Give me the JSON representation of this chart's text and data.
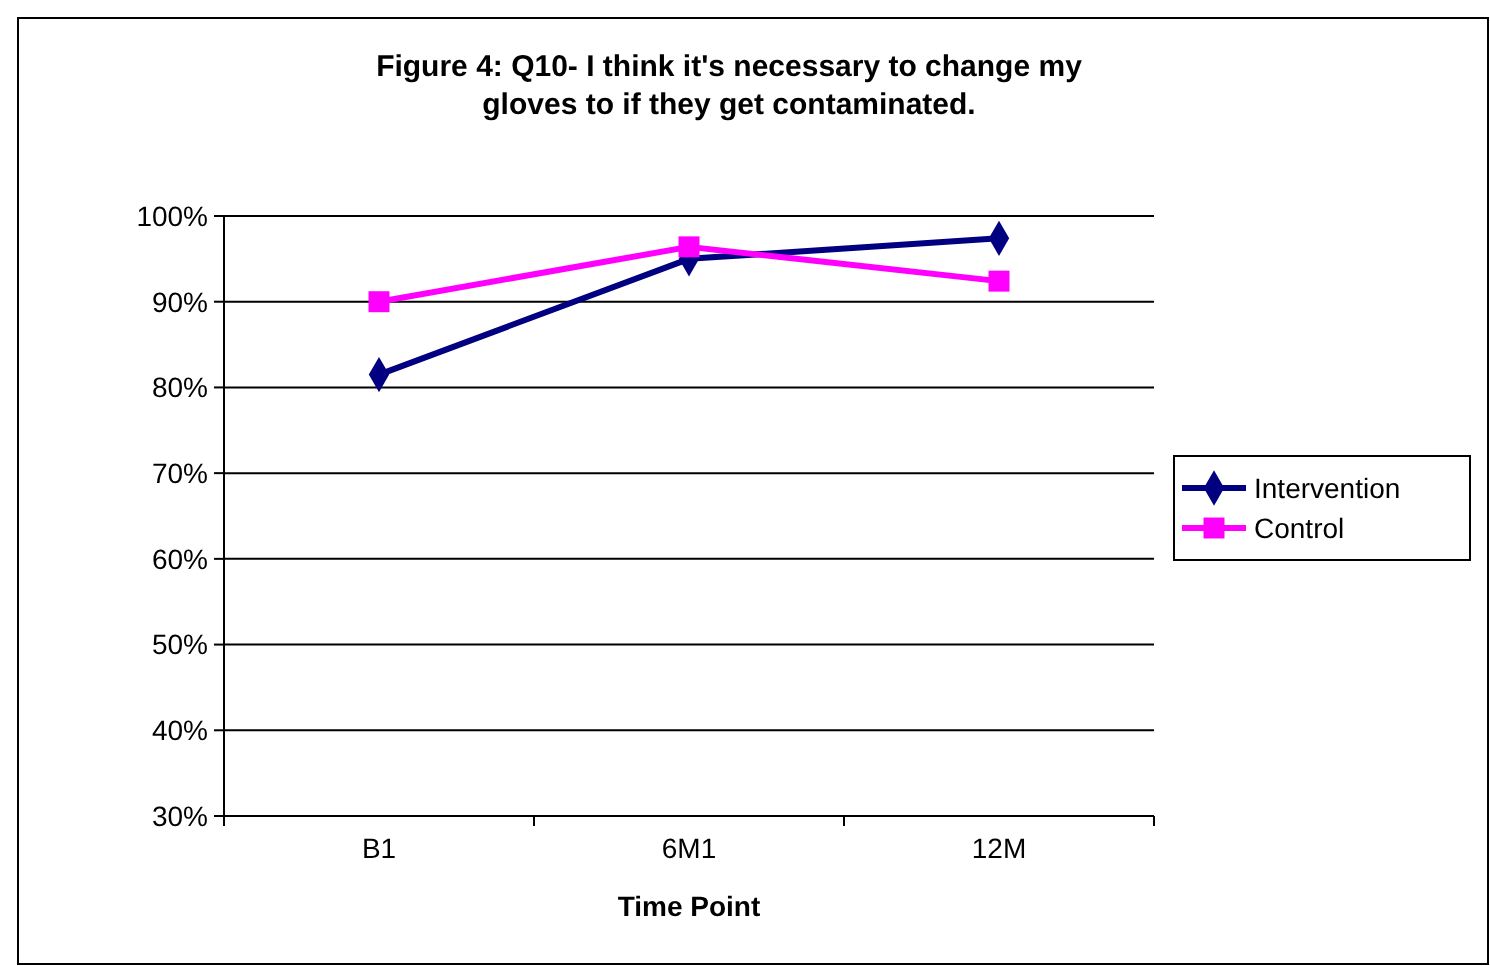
{
  "chart_data": {
    "type": "line",
    "title": "Figure 4: Q10- I think it's necessary to change my gloves to if they get contaminated.",
    "xlabel": "Time Point",
    "categories": [
      "B1",
      "6M1",
      "12M"
    ],
    "series": [
      {
        "name": "Intervention",
        "color": "#000080",
        "values": [
          81.5,
          95.0,
          97.4
        ],
        "marker": "diamond"
      },
      {
        "name": "Control",
        "color": "#ff00ff",
        "values": [
          90.0,
          96.4,
          92.4
        ],
        "marker": "square"
      }
    ],
    "ylim": [
      30,
      100
    ],
    "yticks": [
      {
        "value": 30,
        "label": "30%"
      },
      {
        "value": 40,
        "label": "40%"
      },
      {
        "value": 50,
        "label": "50%"
      },
      {
        "value": 60,
        "label": "60%"
      },
      {
        "value": 70,
        "label": "70%"
      },
      {
        "value": 80,
        "label": "80%"
      },
      {
        "value": 90,
        "label": "90%"
      },
      {
        "value": 100,
        "label": "100%"
      }
    ],
    "grid": "y",
    "legend": "right",
    "line_style": "solid"
  }
}
